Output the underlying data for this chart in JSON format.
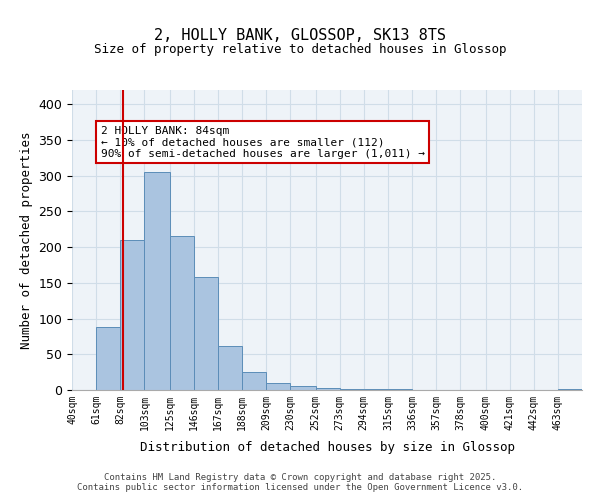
{
  "title1": "2, HOLLY BANK, GLOSSOP, SK13 8TS",
  "title2": "Size of property relative to detached houses in Glossop",
  "xlabel": "Distribution of detached houses by size in Glossop",
  "ylabel": "Number of detached properties",
  "bin_labels": [
    "40sqm",
    "61sqm",
    "82sqm",
    "103sqm",
    "125sqm",
    "146sqm",
    "167sqm",
    "188sqm",
    "209sqm",
    "230sqm",
    "252sqm",
    "273sqm",
    "294sqm",
    "315sqm",
    "336sqm",
    "357sqm",
    "378sqm",
    "400sqm",
    "421sqm",
    "442sqm",
    "463sqm"
  ],
  "bin_edges": [
    40,
    61,
    82,
    103,
    125,
    146,
    167,
    188,
    209,
    230,
    252,
    273,
    294,
    315,
    336,
    357,
    378,
    400,
    421,
    442,
    463,
    484
  ],
  "bar_heights": [
    0,
    88,
    210,
    305,
    215,
    158,
    62,
    25,
    10,
    5,
    3,
    2,
    1,
    1,
    0,
    0,
    0,
    0,
    0,
    0,
    2
  ],
  "bar_color": "#aac4e0",
  "bar_edge_color": "#5b8db8",
  "property_size": 84,
  "vline_color": "#cc0000",
  "annotation_text": "2 HOLLY BANK: 84sqm\n← 10% of detached houses are smaller (112)\n90% of semi-detached houses are larger (1,011) →",
  "annotation_box_color": "#ffffff",
  "annotation_box_edge": "#cc0000",
  "ylim": [
    0,
    420
  ],
  "grid_color": "#d0dde8",
  "background_color": "#eef3f8",
  "footer1": "Contains HM Land Registry data © Crown copyright and database right 2025.",
  "footer2": "Contains public sector information licensed under the Open Government Licence v3.0."
}
